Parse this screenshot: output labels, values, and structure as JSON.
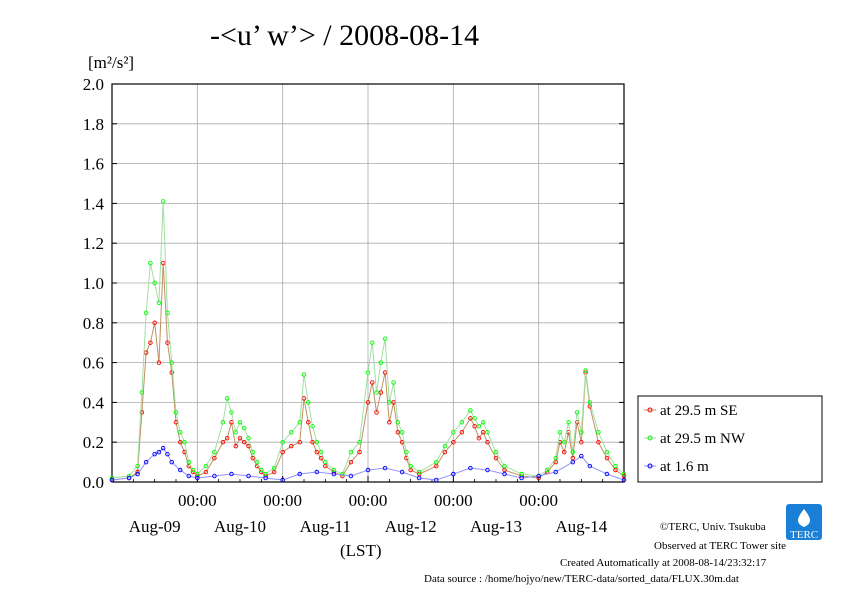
{
  "chart_data": {
    "type": "line",
    "title": "-<u’ w’> / 2008-08-14",
    "ylabel": "[m²/s²]",
    "xlabel": "(LST)",
    "ylim": [
      0,
      2.0
    ],
    "yticks": [
      "0.0",
      "0.2",
      "0.4",
      "0.6",
      "0.8",
      "1.0",
      "1.2",
      "1.4",
      "1.6",
      "1.8",
      "2.0"
    ],
    "xlim": [
      0,
      6
    ],
    "time_ticks": [
      "00:00",
      "00:00",
      "00:00",
      "00:00",
      "00:00"
    ],
    "day_labels": [
      "Aug-09",
      "Aug-10",
      "Aug-11",
      "Aug-12",
      "Aug-13",
      "Aug-14"
    ],
    "grid": true,
    "legend_position": "right",
    "series": [
      {
        "name": "at 29.5 m SE",
        "color": "#ff0000",
        "line_color": "#c09060",
        "x": [
          0,
          0.2,
          0.3,
          0.35,
          0.4,
          0.45,
          0.5,
          0.55,
          0.6,
          0.65,
          0.7,
          0.75,
          0.8,
          0.85,
          0.9,
          0.95,
          1.0,
          1.1,
          1.2,
          1.3,
          1.35,
          1.4,
          1.45,
          1.5,
          1.55,
          1.6,
          1.65,
          1.7,
          1.75,
          1.8,
          1.9,
          2.0,
          2.1,
          2.2,
          2.25,
          2.3,
          2.35,
          2.4,
          2.45,
          2.5,
          2.6,
          2.7,
          2.8,
          2.9,
          3.0,
          3.05,
          3.1,
          3.15,
          3.2,
          3.25,
          3.3,
          3.35,
          3.4,
          3.45,
          3.5,
          3.6,
          3.8,
          3.9,
          4.0,
          4.1,
          4.2,
          4.25,
          4.3,
          4.35,
          4.4,
          4.5,
          4.6,
          4.8,
          5.0,
          5.1,
          5.2,
          5.25,
          5.3,
          5.35,
          5.4,
          5.45,
          5.5,
          5.55,
          5.6,
          5.7,
          5.8,
          5.9,
          6.0
        ],
        "y": [
          0.01,
          0.02,
          0.05,
          0.35,
          0.65,
          0.7,
          0.8,
          0.6,
          1.1,
          0.7,
          0.55,
          0.3,
          0.2,
          0.15,
          0.08,
          0.05,
          0.03,
          0.05,
          0.12,
          0.2,
          0.22,
          0.3,
          0.18,
          0.22,
          0.2,
          0.18,
          0.12,
          0.08,
          0.05,
          0.03,
          0.05,
          0.15,
          0.18,
          0.2,
          0.42,
          0.3,
          0.2,
          0.15,
          0.12,
          0.08,
          0.05,
          0.03,
          0.1,
          0.15,
          0.4,
          0.5,
          0.35,
          0.45,
          0.55,
          0.3,
          0.4,
          0.25,
          0.2,
          0.12,
          0.06,
          0.04,
          0.08,
          0.15,
          0.2,
          0.25,
          0.32,
          0.28,
          0.22,
          0.25,
          0.2,
          0.12,
          0.06,
          0.03,
          0.02,
          0.05,
          0.1,
          0.2,
          0.15,
          0.25,
          0.12,
          0.3,
          0.2,
          0.55,
          0.38,
          0.2,
          0.12,
          0.06,
          0.03
        ]
      },
      {
        "name": "at 29.5 m NW",
        "color": "#00ff00",
        "line_color": "#a0e0a0",
        "x": [
          0,
          0.2,
          0.3,
          0.35,
          0.4,
          0.45,
          0.5,
          0.55,
          0.6,
          0.65,
          0.7,
          0.75,
          0.8,
          0.85,
          0.9,
          0.95,
          1.0,
          1.1,
          1.2,
          1.3,
          1.35,
          1.4,
          1.45,
          1.5,
          1.55,
          1.6,
          1.65,
          1.7,
          1.75,
          1.8,
          1.9,
          2.0,
          2.1,
          2.2,
          2.25,
          2.3,
          2.35,
          2.4,
          2.45,
          2.5,
          2.6,
          2.7,
          2.8,
          2.9,
          3.0,
          3.05,
          3.1,
          3.15,
          3.2,
          3.25,
          3.3,
          3.35,
          3.4,
          3.45,
          3.5,
          3.6,
          3.8,
          3.9,
          4.0,
          4.1,
          4.2,
          4.25,
          4.3,
          4.35,
          4.4,
          4.5,
          4.6,
          4.8,
          5.0,
          5.1,
          5.2,
          5.25,
          5.3,
          5.35,
          5.4,
          5.45,
          5.5,
          5.55,
          5.6,
          5.7,
          5.8,
          5.9,
          6.0
        ],
        "y": [
          0.02,
          0.03,
          0.08,
          0.45,
          0.85,
          1.1,
          1.0,
          0.9,
          1.41,
          0.85,
          0.6,
          0.35,
          0.25,
          0.2,
          0.1,
          0.06,
          0.04,
          0.08,
          0.15,
          0.3,
          0.42,
          0.35,
          0.25,
          0.3,
          0.27,
          0.22,
          0.15,
          0.1,
          0.06,
          0.04,
          0.07,
          0.2,
          0.25,
          0.3,
          0.54,
          0.4,
          0.28,
          0.2,
          0.15,
          0.1,
          0.06,
          0.04,
          0.15,
          0.2,
          0.55,
          0.7,
          0.45,
          0.6,
          0.72,
          0.4,
          0.5,
          0.3,
          0.25,
          0.15,
          0.08,
          0.05,
          0.1,
          0.18,
          0.25,
          0.3,
          0.36,
          0.32,
          0.28,
          0.3,
          0.25,
          0.15,
          0.08,
          0.04,
          0.03,
          0.06,
          0.12,
          0.25,
          0.2,
          0.3,
          0.15,
          0.35,
          0.25,
          0.56,
          0.4,
          0.25,
          0.15,
          0.08,
          0.04
        ]
      },
      {
        "name": "at 1.6 m",
        "color": "#0000ff",
        "line_color": "#9090ff",
        "x": [
          0,
          0.2,
          0.3,
          0.4,
          0.5,
          0.55,
          0.6,
          0.65,
          0.7,
          0.8,
          0.9,
          1.0,
          1.2,
          1.4,
          1.6,
          1.8,
          2.0,
          2.2,
          2.4,
          2.6,
          2.8,
          3.0,
          3.2,
          3.4,
          3.6,
          3.8,
          4.0,
          4.2,
          4.4,
          4.6,
          4.8,
          5.0,
          5.2,
          5.4,
          5.5,
          5.6,
          5.8,
          6.0
        ],
        "y": [
          0.01,
          0.02,
          0.04,
          0.1,
          0.14,
          0.15,
          0.17,
          0.14,
          0.1,
          0.06,
          0.03,
          0.02,
          0.03,
          0.04,
          0.03,
          0.02,
          0.01,
          0.04,
          0.05,
          0.04,
          0.03,
          0.06,
          0.07,
          0.05,
          0.02,
          0.01,
          0.04,
          0.07,
          0.06,
          0.04,
          0.02,
          0.03,
          0.05,
          0.1,
          0.13,
          0.08,
          0.04,
          0.01
        ]
      }
    ],
    "legend": [
      "at 29.5 m SE",
      "at 29.5 m NW",
      "at 1.6 m"
    ]
  },
  "footer": {
    "copyright": "©TERC, Univ. Tsukuba",
    "observed": "Observed at TERC Tower site",
    "created": "Created Automatically at 2008-08-14/23:32:17",
    "source": "Data source : /home/hojyo/new/TERC-data/sorted_data/FLUX.30m.dat",
    "logo_text": "TERC"
  }
}
